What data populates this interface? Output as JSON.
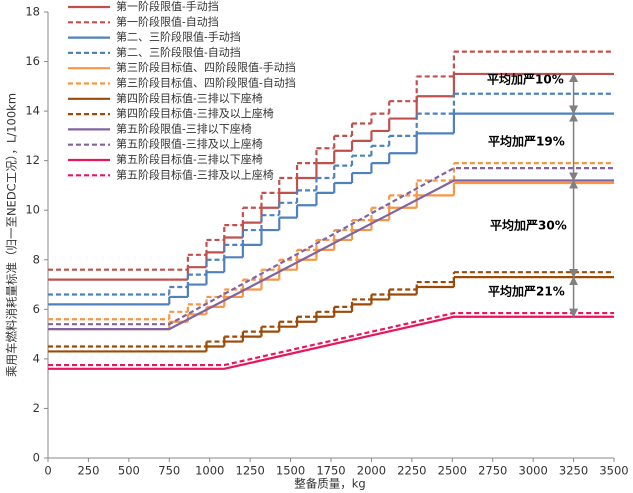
{
  "chart_data": {
    "type": "line",
    "xlabel": "整备质量，kg",
    "ylabel": "乘用车燃料消耗量标准（归一至NEDC工况），L/100km",
    "xlim": [
      0,
      3500
    ],
    "xticks": [
      0,
      250,
      500,
      750,
      1000,
      1250,
      1500,
      1750,
      2000,
      2250,
      2500,
      2750,
      3000,
      3250,
      3500
    ],
    "ylim": [
      0,
      18
    ],
    "yticks": [
      0,
      2,
      4,
      6,
      8,
      10,
      12,
      14,
      16,
      18
    ],
    "legend": "upper left",
    "series": [
      {
        "name": "第一阶段限值-手动挡",
        "color": "#c0504d",
        "dash": false,
        "step": true,
        "x": [
          0,
          750,
          865,
          980,
          1090,
          1205,
          1320,
          1430,
          1540,
          1660,
          1770,
          1880,
          2000,
          2110,
          2280,
          2510
        ],
        "values": [
          7.2,
          7.2,
          7.7,
          8.3,
          8.9,
          9.5,
          10.1,
          10.7,
          11.3,
          11.9,
          12.4,
          12.8,
          13.2,
          13.7,
          14.6,
          15.5
        ]
      },
      {
        "name": "第一阶段限值-自动挡",
        "color": "#c0504d",
        "dash": true,
        "step": true,
        "x": [
          0,
          750,
          865,
          980,
          1090,
          1205,
          1320,
          1430,
          1540,
          1660,
          1770,
          1880,
          2000,
          2110,
          2280,
          2510
        ],
        "values": [
          7.6,
          7.6,
          8.2,
          8.8,
          9.4,
          10.1,
          10.7,
          11.3,
          11.9,
          12.5,
          13.0,
          13.5,
          13.9,
          14.4,
          15.4,
          16.4
        ]
      },
      {
        "name": "第二、三阶段限值-手动挡",
        "color": "#4f81bd",
        "dash": false,
        "step": true,
        "x": [
          0,
          750,
          865,
          980,
          1090,
          1205,
          1320,
          1430,
          1540,
          1660,
          1770,
          1880,
          2000,
          2110,
          2280,
          2510
        ],
        "values": [
          6.2,
          6.5,
          7.0,
          7.5,
          8.1,
          8.6,
          9.2,
          9.7,
          10.2,
          10.7,
          11.1,
          11.5,
          11.9,
          12.3,
          13.1,
          13.9
        ]
      },
      {
        "name": "第二、三阶段限值-自动挡",
        "color": "#4f81bd",
        "dash": true,
        "step": true,
        "x": [
          0,
          750,
          865,
          980,
          1090,
          1205,
          1320,
          1430,
          1540,
          1660,
          1770,
          1880,
          2000,
          2110,
          2280,
          2510
        ],
        "values": [
          6.6,
          6.9,
          7.4,
          8.0,
          8.6,
          9.2,
          9.8,
          10.3,
          10.8,
          11.3,
          11.8,
          12.2,
          12.6,
          13.0,
          13.9,
          14.7
        ]
      },
      {
        "name": "第三阶段目标值、四阶段限值-手动挡",
        "color": "#f79646",
        "dash": false,
        "step": true,
        "x": [
          0,
          750,
          865,
          980,
          1090,
          1205,
          1320,
          1430,
          1540,
          1660,
          1770,
          1880,
          2000,
          2110,
          2280,
          2510
        ],
        "values": [
          5.2,
          5.5,
          5.8,
          6.1,
          6.5,
          6.8,
          7.2,
          7.6,
          8.0,
          8.4,
          8.8,
          9.2,
          9.6,
          10.1,
          10.6,
          11.1
        ]
      },
      {
        "name": "第三阶段目标值、四阶段限值-自动挡",
        "color": "#f79646",
        "dash": true,
        "step": true,
        "x": [
          0,
          750,
          865,
          980,
          1090,
          1205,
          1320,
          1430,
          1540,
          1660,
          1770,
          1880,
          2000,
          2110,
          2280,
          2510
        ],
        "values": [
          5.6,
          5.9,
          6.2,
          6.5,
          6.8,
          7.2,
          7.6,
          8.0,
          8.4,
          8.8,
          9.2,
          9.6,
          10.1,
          10.6,
          11.2,
          11.9
        ]
      },
      {
        "name": "第四阶段目标值-三排以下座椅",
        "color": "#9c4a06",
        "dash": false,
        "step": true,
        "x": [
          0,
          750,
          865,
          980,
          1090,
          1205,
          1320,
          1430,
          1540,
          1660,
          1770,
          1880,
          2000,
          2110,
          2280,
          2510
        ],
        "values": [
          4.3,
          4.3,
          4.3,
          4.5,
          4.7,
          4.9,
          5.1,
          5.3,
          5.5,
          5.7,
          5.9,
          6.2,
          6.4,
          6.6,
          6.9,
          7.3
        ]
      },
      {
        "name": "第四阶段目标值-三排及以上座椅",
        "color": "#9c4a06",
        "dash": true,
        "step": true,
        "x": [
          0,
          750,
          865,
          980,
          1090,
          1205,
          1320,
          1430,
          1540,
          1660,
          1770,
          1880,
          2000,
          2110,
          2280,
          2510
        ],
        "values": [
          4.5,
          4.5,
          4.5,
          4.7,
          4.9,
          5.1,
          5.3,
          5.5,
          5.7,
          5.9,
          6.1,
          6.4,
          6.6,
          6.8,
          7.1,
          7.5
        ]
      },
      {
        "name": "第五阶段限值-三排以下座椅",
        "color": "#8064a2",
        "dash": false,
        "step": false,
        "x": [
          0,
          750,
          2510,
          3500
        ],
        "values": [
          5.2,
          5.2,
          11.2,
          11.2
        ]
      },
      {
        "name": "第五阶段限值-三排及以上座椅",
        "color": "#8064a2",
        "dash": true,
        "step": false,
        "x": [
          0,
          750,
          2510,
          3500
        ],
        "values": [
          5.4,
          5.4,
          11.7,
          11.7
        ]
      },
      {
        "name": "第五阶段目标值-三排以下座椅",
        "color": "#e8175d",
        "dash": false,
        "step": false,
        "x": [
          0,
          1090,
          2510,
          3500
        ],
        "values": [
          3.6,
          3.6,
          5.7,
          5.7
        ]
      },
      {
        "name": "第五阶段目标值-三排及以上座椅",
        "color": "#e8175d",
        "dash": true,
        "step": false,
        "x": [
          0,
          1090,
          2510,
          3500
        ],
        "values": [
          3.75,
          3.75,
          5.85,
          5.85
        ]
      }
    ],
    "annotations": [
      "平均加严10%",
      "平均加严19%",
      "平均加严30%",
      "平均加严21%"
    ]
  }
}
